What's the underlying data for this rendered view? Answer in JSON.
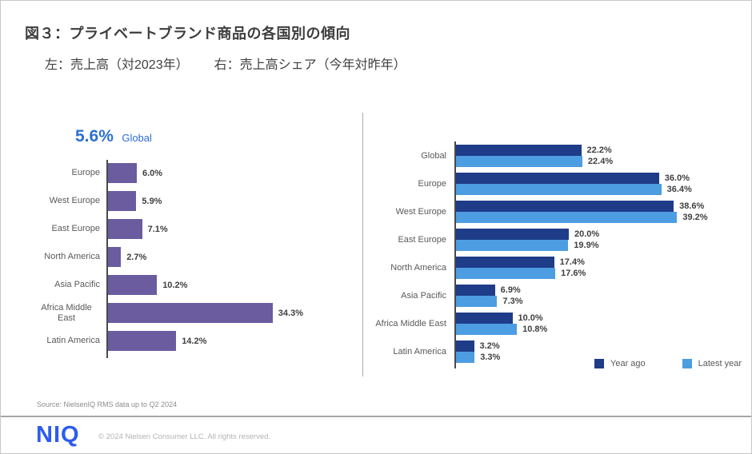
{
  "page": {
    "title": "図３：プライベートブランド商品の各国別の傾向",
    "subtitle_left": "左：売上高（対2023年）",
    "subtitle_right": "右：売上高シェア（今年対昨年）",
    "source_note": "Source: NielsenIQ RMS data up to Q2 2024",
    "footer": {
      "logo_text": "NIQ",
      "copyright": "© 2024 Nielsen Consumer LLC. All rights reserved."
    }
  },
  "colors": {
    "purple_bar": "#6a5c9f",
    "dark_blue_bar": "#1f3c88",
    "light_blue_bar": "#4d9de2",
    "accent_blue_text": "#2d6fd2",
    "logo_blue": "#2e5bf0",
    "label_gray": "#595959",
    "value_dark": "#3f3f3f"
  },
  "chart_data": [
    {
      "type": "bar",
      "orientation": "horizontal",
      "title": "売上高（対2023年）",
      "global_callout": {
        "value": "5.6%",
        "label": "Global"
      },
      "categories": [
        "Europe",
        "West Europe",
        "East Europe",
        "North America",
        "Asia Pacific",
        "Africa Middle East",
        "Latin America"
      ],
      "values": [
        6.0,
        5.9,
        7.1,
        2.7,
        10.2,
        34.3,
        14.2
      ],
      "labels": [
        "6.0%",
        "5.9%",
        "7.1%",
        "2.7%",
        "10.2%",
        "34.3%",
        "14.2%"
      ],
      "xlim": [
        0,
        40
      ],
      "grid": false,
      "bar_color_key": "purple_bar"
    },
    {
      "type": "bar",
      "orientation": "horizontal",
      "title": "売上高シェア（今年対昨年）",
      "categories": [
        "Global",
        "Europe",
        "West Europe",
        "East Europe",
        "North America",
        "Asia Pacific",
        "Africa Middle East",
        "Latin America"
      ],
      "series": [
        {
          "name": "Year ago",
          "color_key": "dark_blue_bar",
          "values": [
            22.2,
            36.0,
            38.6,
            20.0,
            17.4,
            6.9,
            10.0,
            3.2
          ],
          "labels": [
            "22.2%",
            "36.0%",
            "38.6%",
            "20.0%",
            "17.4%",
            "6.9%",
            "10.0%",
            "3.2%"
          ]
        },
        {
          "name": "Latest year",
          "color_key": "light_blue_bar",
          "values": [
            22.4,
            36.4,
            39.2,
            19.9,
            17.6,
            7.3,
            10.8,
            3.3
          ],
          "labels": [
            "22.4%",
            "36.4%",
            "39.2%",
            "19.9%",
            "17.6%",
            "7.3%",
            "10.8%",
            "3.3%"
          ]
        }
      ],
      "legend": {
        "position": "bottom-right",
        "entries": [
          "Year ago",
          "Latest year"
        ]
      },
      "xlim": [
        0,
        40
      ],
      "grid": false
    }
  ]
}
